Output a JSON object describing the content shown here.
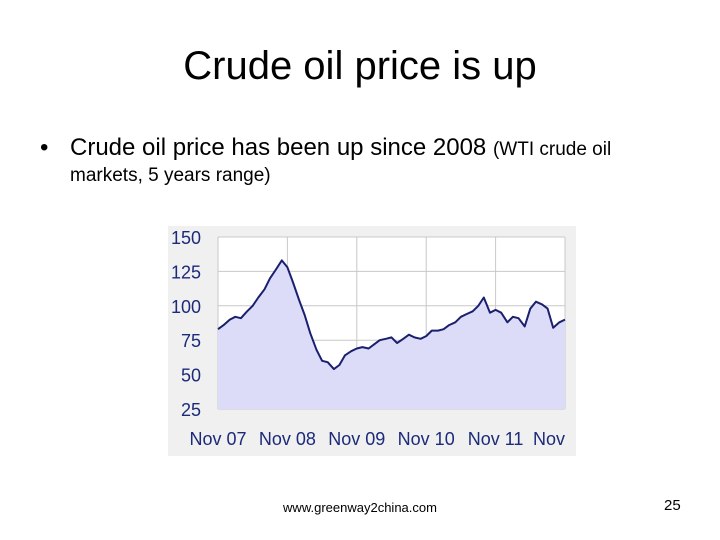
{
  "slide": {
    "title": "Crude oil price is up",
    "bullet_symbol": "•",
    "bullet_main": "Crude oil price has been up since 2008",
    "bullet_paren": "(WTI crude oil",
    "bullet_line2": "markets, 5 years range)",
    "footer_url": "www.greenway2china.com",
    "page_number": "25"
  },
  "chart_data": {
    "type": "area",
    "title": "",
    "xlabel": "",
    "ylabel": "",
    "ylim": [
      25,
      150
    ],
    "yticks": [
      150,
      125,
      100,
      75,
      50,
      25
    ],
    "xtick_labels": [
      "Nov 07",
      "Nov 08",
      "Nov 09",
      "Nov 10",
      "Nov 11",
      "Nov"
    ],
    "grid": true,
    "line_color": "#1a1f6e",
    "fill_color": "#dcdcf8",
    "tick_label_color": "#1c2a7a",
    "series": [
      {
        "x": [
          2007.0,
          2007.08,
          2007.17,
          2007.25,
          2007.33,
          2007.42,
          2007.5,
          2007.58,
          2007.67,
          2007.75,
          2007.83,
          2007.92,
          2008.0,
          2008.08,
          2008.17,
          2008.25,
          2008.33,
          2008.42,
          2008.5,
          2008.58,
          2008.67,
          2008.75,
          2008.83,
          2008.92,
          2009.0,
          2009.08,
          2009.17,
          2009.25,
          2009.33,
          2009.42,
          2009.5,
          2009.58,
          2009.67,
          2009.75,
          2009.83,
          2009.92,
          2010.0,
          2010.08,
          2010.17,
          2010.25,
          2010.33,
          2010.42,
          2010.5,
          2010.58,
          2010.67,
          2010.75,
          2010.83,
          2010.92,
          2011.0,
          2011.08,
          2011.17,
          2011.25,
          2011.33,
          2011.42,
          2011.5,
          2011.58,
          2011.67,
          2011.75,
          2011.83,
          2011.92,
          2012.0
        ],
        "values": [
          83,
          86,
          90,
          92,
          91,
          96,
          100,
          106,
          112,
          120,
          126,
          133,
          128,
          117,
          104,
          93,
          80,
          68,
          60,
          59,
          54,
          57,
          64,
          67,
          69,
          70,
          69,
          72,
          75,
          76,
          77,
          73,
          76,
          79,
          77,
          76,
          78,
          82,
          82,
          83,
          86,
          88,
          92,
          94,
          96,
          100,
          106,
          95,
          97,
          95,
          88,
          92,
          91,
          85,
          98,
          103,
          101,
          98,
          84,
          88,
          90
        ]
      }
    ]
  }
}
